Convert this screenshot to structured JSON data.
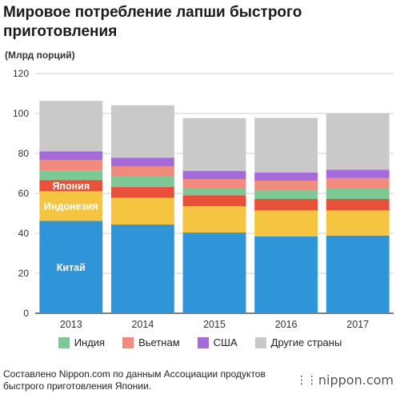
{
  "title": "Мировое потребление лапши быстрого приготовления",
  "unit_label": "(Млрд порций)",
  "source_note": "Составлено Nippon.com по данным Ассоциации продуктов быстрого приготовления Японии.",
  "logo_text": "nippon.com",
  "chart_data": {
    "type": "bar",
    "stacked": true,
    "categories": [
      "2013",
      "2014",
      "2015",
      "2016",
      "2017"
    ],
    "ylim": [
      0,
      120
    ],
    "yticks": [
      0,
      20,
      40,
      60,
      80,
      100,
      120
    ],
    "grid": true,
    "legend_position": "bottom",
    "series": [
      {
        "name": "Китай",
        "color": "#2f95d8",
        "values": [
          46.2,
          44.4,
          40.4,
          38.5,
          38.9
        ],
        "inline_label": true
      },
      {
        "name": "Индонезия",
        "color": "#f5c542",
        "values": [
          14.9,
          13.4,
          13.2,
          13.0,
          12.6
        ],
        "inline_label": true
      },
      {
        "name": "Япония",
        "color": "#e8503a",
        "values": [
          5.5,
          5.5,
          5.5,
          5.7,
          5.7
        ],
        "inline_label": true
      },
      {
        "name": "Индия",
        "color": "#7dc895",
        "values": [
          4.9,
          5.3,
          3.3,
          4.3,
          5.4
        ]
      },
      {
        "name": "Вьетнам",
        "color": "#f08b7e",
        "values": [
          5.2,
          5.0,
          4.8,
          4.9,
          5.1
        ]
      },
      {
        "name": "США",
        "color": "#a56bd8",
        "values": [
          4.4,
          4.3,
          4.1,
          4.1,
          4.1
        ]
      },
      {
        "name": "Другие страны",
        "color": "#c9c9c9",
        "values": [
          25.2,
          26.2,
          26.4,
          27.3,
          28.4
        ]
      }
    ],
    "legend_series": [
      "Индия",
      "Вьетнам",
      "США",
      "Другие страны"
    ]
  }
}
